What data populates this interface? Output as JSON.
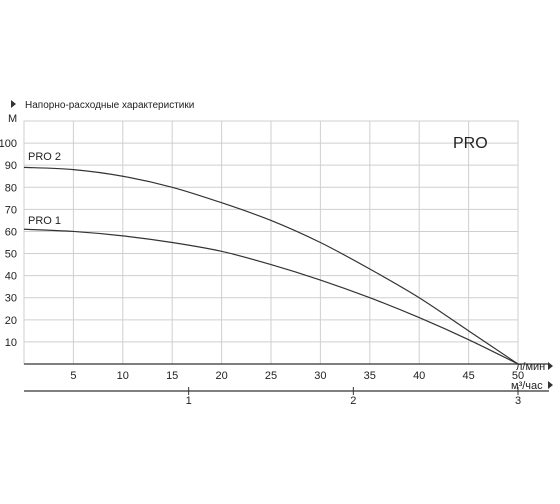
{
  "chart_data": {
    "type": "line",
    "title": "Напорно-расходные характеристики",
    "brand": "PRO",
    "ylabel": "М",
    "xlabel": "л/мин",
    "x2label": "м³/час",
    "xlim": [
      0,
      50
    ],
    "ylim": [
      0,
      110
    ],
    "xticks": [
      5,
      10,
      15,
      20,
      25,
      30,
      35,
      40,
      45,
      50
    ],
    "yticks": [
      10,
      20,
      30,
      40,
      50,
      60,
      70,
      80,
      90,
      100
    ],
    "x2ticks": [
      1,
      2,
      3
    ],
    "grid": true,
    "series": [
      {
        "name": "PRO 2",
        "x": [
          0,
          5,
          10,
          15,
          20,
          25,
          30,
          35,
          40,
          45,
          50
        ],
        "y": [
          89,
          88,
          85,
          80,
          73,
          65,
          55,
          43,
          30,
          15,
          0
        ]
      },
      {
        "name": "PRO 1",
        "x": [
          0,
          5,
          10,
          15,
          20,
          25,
          30,
          35,
          40,
          45,
          50
        ],
        "y": [
          61,
          60,
          58,
          55,
          51,
          45,
          38,
          30,
          21,
          11,
          0
        ]
      }
    ],
    "colors": {
      "line": "#333333",
      "grid": "#cfcfcf",
      "axis": "#333333",
      "text": "#222222"
    }
  }
}
